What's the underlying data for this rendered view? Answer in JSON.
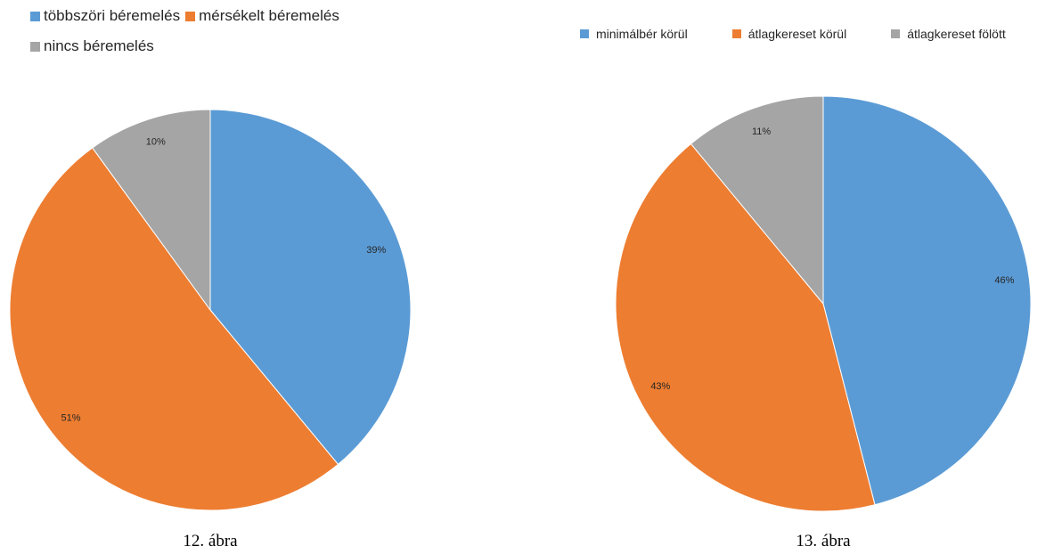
{
  "chart_data": [
    {
      "type": "pie",
      "caption": "12. ábra",
      "categories": [
        "többszöri béremelés",
        "mérsékelt béremelés",
        "nincs béremelés"
      ],
      "values": [
        39,
        51,
        10
      ],
      "labels": [
        "39%",
        "51%",
        "10%"
      ],
      "colors": [
        "#5B9BD5",
        "#ED7D31",
        "#A5A5A5"
      ],
      "legend": "top-left"
    },
    {
      "type": "pie",
      "caption": "13. ábra",
      "categories": [
        "minimálbér körül",
        "átlagkereset körül",
        "átlagkereset fölött"
      ],
      "values": [
        46,
        43,
        11
      ],
      "labels": [
        "46%",
        "43%",
        "11%"
      ],
      "colors": [
        "#5B9BD5",
        "#ED7D31",
        "#A5A5A5"
      ],
      "legend": "top"
    }
  ]
}
